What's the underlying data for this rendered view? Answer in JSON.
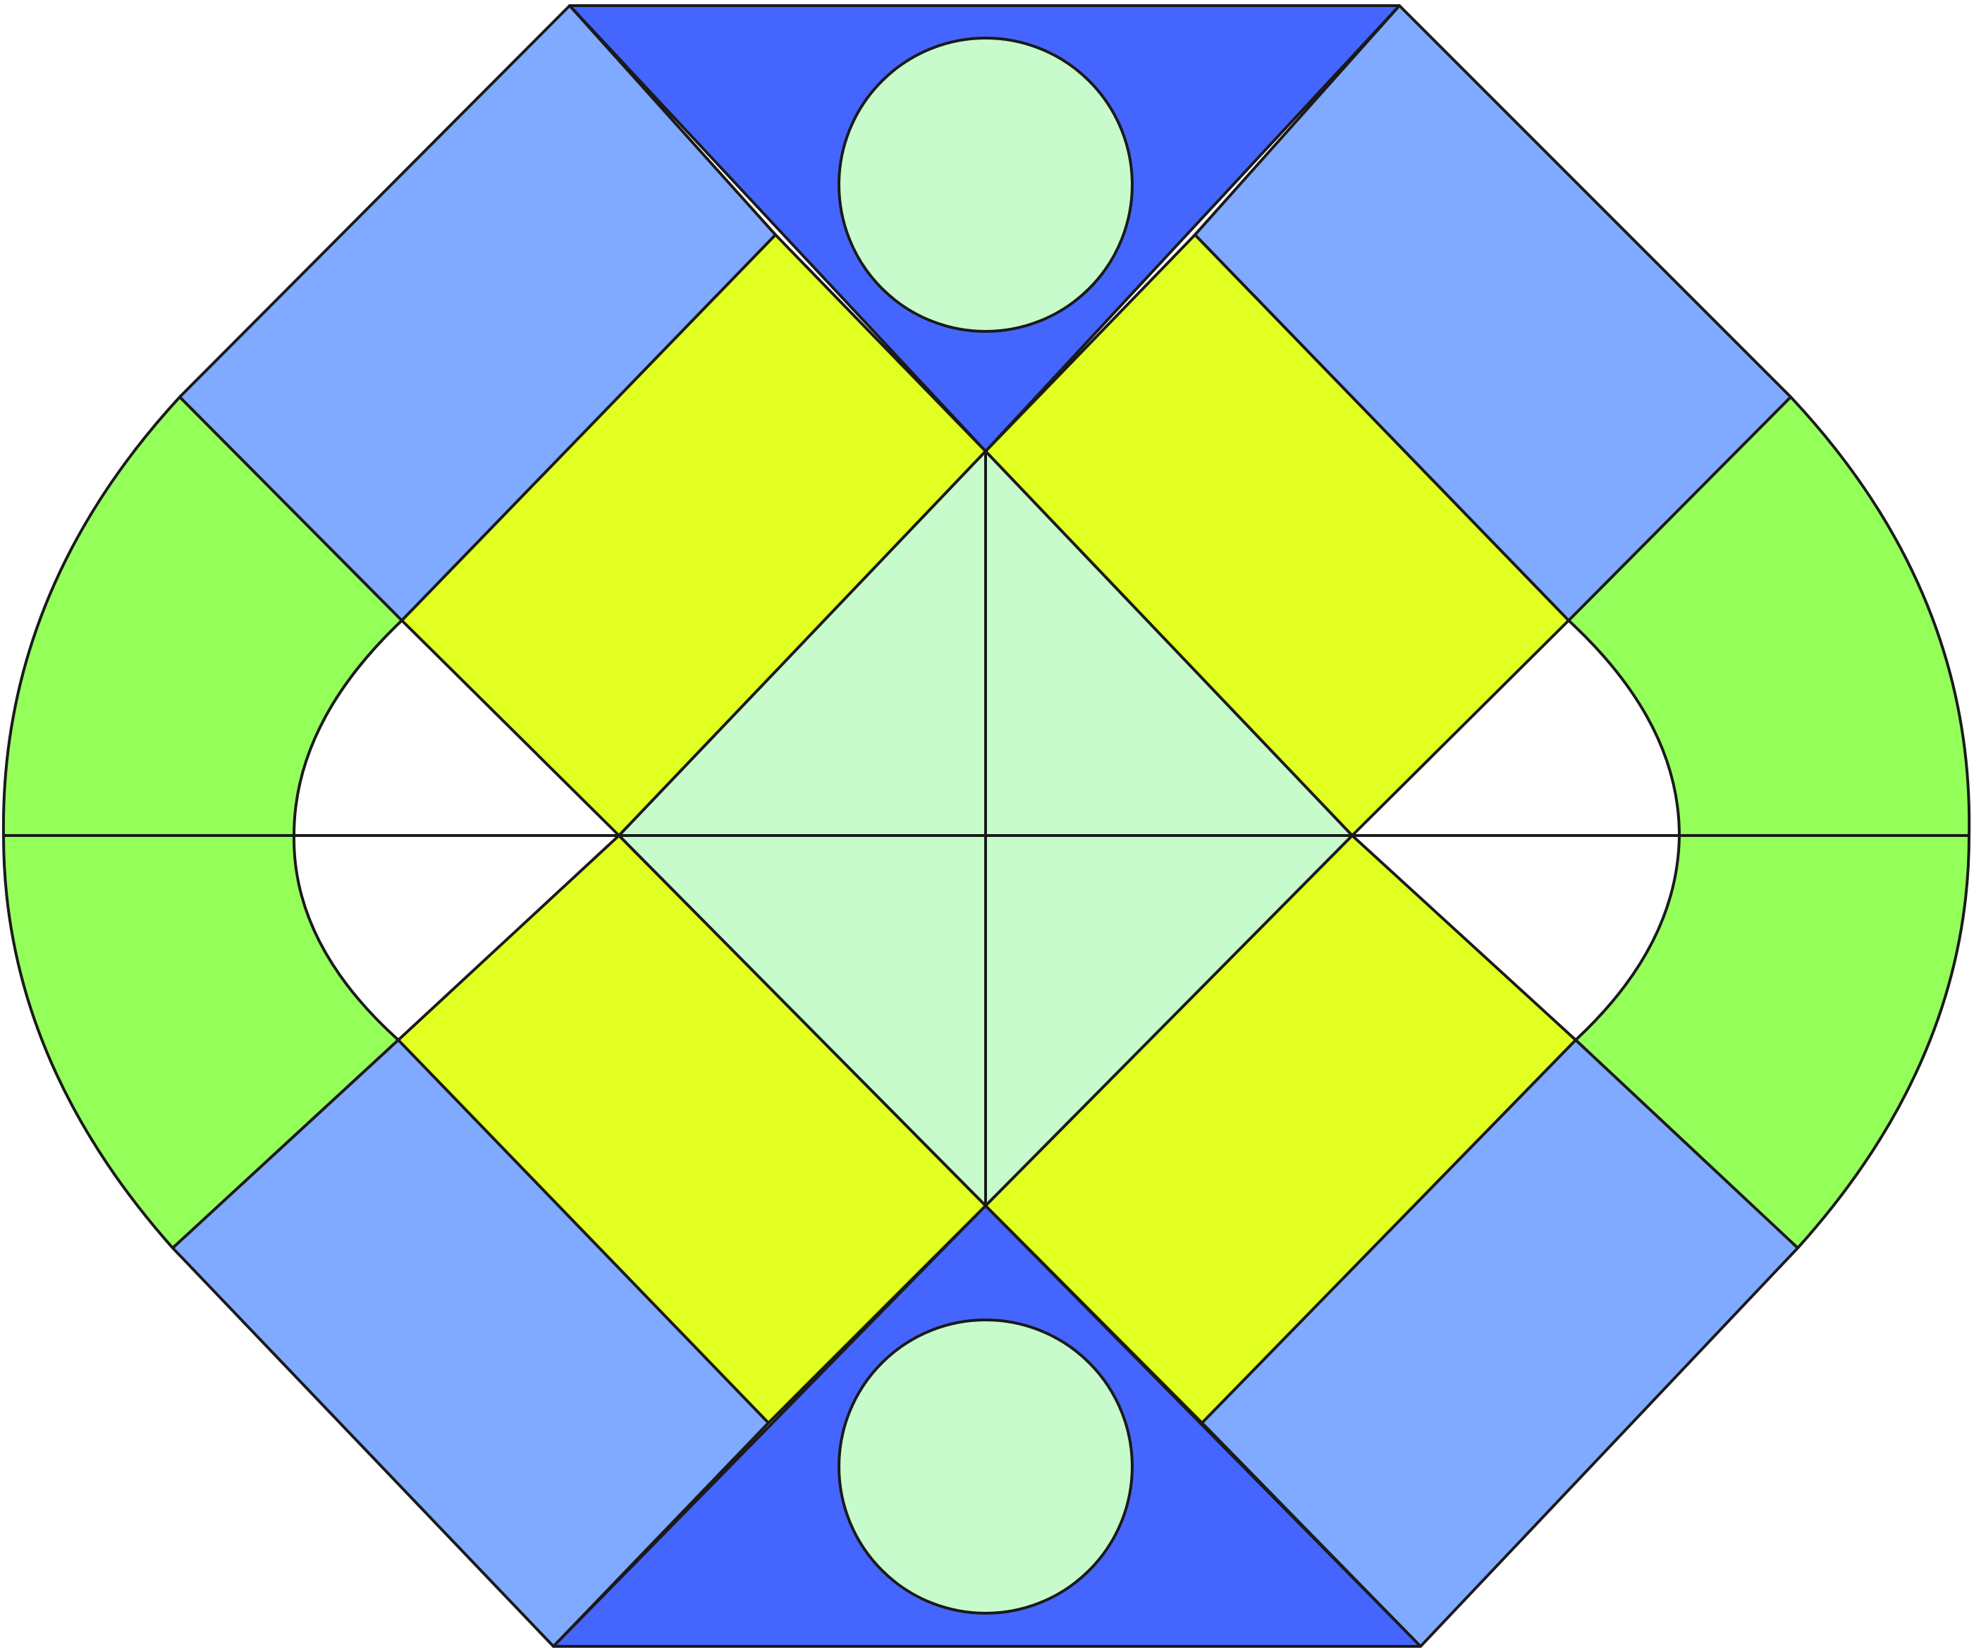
{
  "figure": {
    "colors": {
      "background": "#ffffff",
      "light_blue": "#80aaff",
      "dark_blue": "#4466ff",
      "yellow": "#e1ff20",
      "green": "#95ff5a",
      "pale_green": "#c7fbcb",
      "outline": "#1a1a1a"
    }
  }
}
